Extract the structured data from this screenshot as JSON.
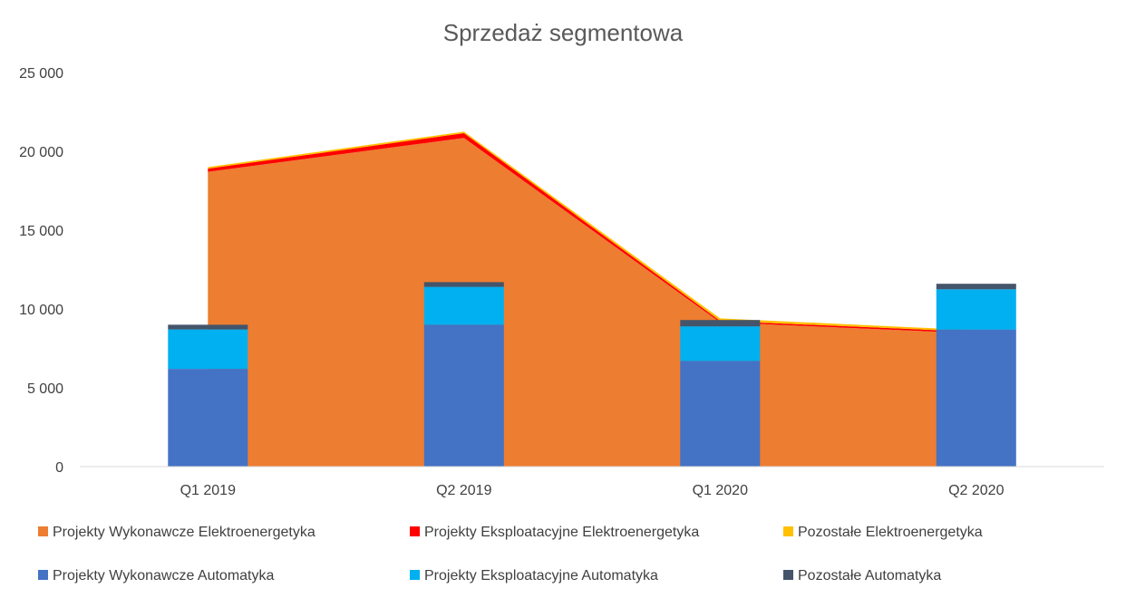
{
  "chart_data": {
    "type": "area",
    "title": "Sprzedaż segmentowa",
    "categories": [
      "Q1 2019",
      "Q2 2019",
      "Q1 2020",
      "Q2 2020"
    ],
    "y_ticks": [
      "0",
      "5 000",
      "10 000",
      "15 000",
      "20 000",
      "25 000"
    ],
    "ylim": [
      0,
      25000
    ],
    "grid": false,
    "legend_position": "bottom",
    "area_series": [
      {
        "name": "Projekty Wykonawcze Elektroenergetyka",
        "color": "#ED7D31",
        "values": [
          18700,
          20850,
          9150,
          8450
        ]
      },
      {
        "name": "Projekty Eksploatacyjne Elektroenergetyka",
        "color": "#FF0000",
        "values": [
          200,
          300,
          100,
          100
        ]
      },
      {
        "name": "Pozostałe Elektroenergetyka",
        "color": "#FFC000",
        "values": [
          100,
          100,
          150,
          100
        ]
      }
    ],
    "bar_series": [
      {
        "name": "Projekty Wykonawcze Automatyka",
        "color": "#4472C4",
        "values": [
          6200,
          9000,
          6700,
          8700
        ]
      },
      {
        "name": "Projekty Eksploatacyjne Automatyka",
        "color": "#00B0F0",
        "values": [
          2500,
          2400,
          2200,
          2550
        ]
      },
      {
        "name": "Pozostałe Automatyka",
        "color": "#44546A",
        "values": [
          300,
          300,
          400,
          350
        ]
      }
    ]
  }
}
